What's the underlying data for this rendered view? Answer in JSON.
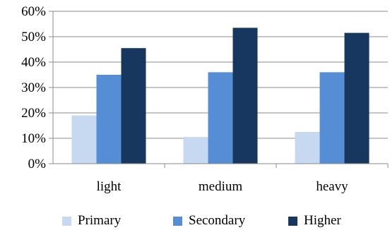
{
  "chart_data": {
    "type": "bar",
    "categories": [
      "light",
      "medium",
      "heavy"
    ],
    "series": [
      {
        "name": "Primary",
        "values": [
          19,
          10.5,
          12.5
        ],
        "color": "#c6d9f1"
      },
      {
        "name": "Secondary",
        "values": [
          35,
          36,
          36
        ],
        "color": "#558ed5"
      },
      {
        "name": "Higher",
        "values": [
          45.5,
          53.5,
          51.5
        ],
        "color": "#17375e"
      }
    ],
    "title": "",
    "xlabel": "",
    "ylabel": "",
    "ylim": [
      0,
      60
    ],
    "yticks": [
      "0%",
      "10%",
      "20%",
      "30%",
      "40%",
      "50%",
      "60%"
    ],
    "y_unit": "%",
    "grid": true,
    "legend_position": "bottom"
  }
}
